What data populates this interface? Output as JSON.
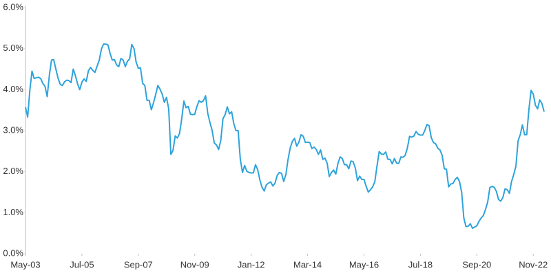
{
  "chart_data": {
    "type": "line",
    "x": [
      "2003-05",
      "2003-06",
      "2003-07",
      "2003-08",
      "2003-09",
      "2003-10",
      "2003-11",
      "2003-12",
      "2004-01",
      "2004-02",
      "2004-03",
      "2004-04",
      "2004-05",
      "2004-06",
      "2004-07",
      "2004-08",
      "2004-09",
      "2004-10",
      "2004-11",
      "2004-12",
      "2005-01",
      "2005-02",
      "2005-03",
      "2005-04",
      "2005-05",
      "2005-06",
      "2005-07",
      "2005-08",
      "2005-09",
      "2005-10",
      "2005-11",
      "2005-12",
      "2006-01",
      "2006-02",
      "2006-03",
      "2006-04",
      "2006-05",
      "2006-06",
      "2006-07",
      "2006-08",
      "2006-09",
      "2006-10",
      "2006-11",
      "2006-12",
      "2007-01",
      "2007-02",
      "2007-03",
      "2007-04",
      "2007-05",
      "2007-06",
      "2007-07",
      "2007-08",
      "2007-09",
      "2007-10",
      "2007-11",
      "2007-12",
      "2008-01",
      "2008-02",
      "2008-03",
      "2008-04",
      "2008-05",
      "2008-06",
      "2008-07",
      "2008-08",
      "2008-09",
      "2008-10",
      "2008-11",
      "2008-12",
      "2009-01",
      "2009-02",
      "2009-03",
      "2009-04",
      "2009-05",
      "2009-06",
      "2009-07",
      "2009-08",
      "2009-09",
      "2009-10",
      "2009-11",
      "2009-12",
      "2010-01",
      "2010-02",
      "2010-03",
      "2010-04",
      "2010-05",
      "2010-06",
      "2010-07",
      "2010-08",
      "2010-09",
      "2010-10",
      "2010-11",
      "2010-12",
      "2011-01",
      "2011-02",
      "2011-03",
      "2011-04",
      "2011-05",
      "2011-06",
      "2011-07",
      "2011-08",
      "2011-09",
      "2011-10",
      "2011-11",
      "2011-12",
      "2012-01",
      "2012-02",
      "2012-03",
      "2012-04",
      "2012-05",
      "2012-06",
      "2012-07",
      "2012-08",
      "2012-09",
      "2012-10",
      "2012-11",
      "2012-12",
      "2013-01",
      "2013-02",
      "2013-03",
      "2013-04",
      "2013-05",
      "2013-06",
      "2013-07",
      "2013-08",
      "2013-09",
      "2013-10",
      "2013-11",
      "2013-12",
      "2014-01",
      "2014-02",
      "2014-03",
      "2014-04",
      "2014-05",
      "2014-06",
      "2014-07",
      "2014-08",
      "2014-09",
      "2014-10",
      "2014-11",
      "2014-12",
      "2015-01",
      "2015-02",
      "2015-03",
      "2015-04",
      "2015-05",
      "2015-06",
      "2015-07",
      "2015-08",
      "2015-09",
      "2015-10",
      "2015-11",
      "2015-12",
      "2016-01",
      "2016-02",
      "2016-03",
      "2016-04",
      "2016-05",
      "2016-06",
      "2016-07",
      "2016-08",
      "2016-09",
      "2016-10",
      "2016-11",
      "2016-12",
      "2017-01",
      "2017-02",
      "2017-03",
      "2017-04",
      "2017-05",
      "2017-06",
      "2017-07",
      "2017-08",
      "2017-09",
      "2017-10",
      "2017-11",
      "2017-12",
      "2018-01",
      "2018-02",
      "2018-03",
      "2018-04",
      "2018-05",
      "2018-06",
      "2018-07",
      "2018-08",
      "2018-09",
      "2018-10",
      "2018-11",
      "2018-12",
      "2019-01",
      "2019-02",
      "2019-03",
      "2019-04",
      "2019-05",
      "2019-06",
      "2019-07",
      "2019-08",
      "2019-09",
      "2019-10",
      "2019-11",
      "2019-12",
      "2020-01",
      "2020-02",
      "2020-03",
      "2020-04",
      "2020-05",
      "2020-06",
      "2020-07",
      "2020-08",
      "2020-09",
      "2020-10",
      "2020-11",
      "2020-12",
      "2021-01",
      "2021-02",
      "2021-03",
      "2021-04",
      "2021-05",
      "2021-06",
      "2021-07",
      "2021-08",
      "2021-09",
      "2021-10",
      "2021-11",
      "2021-12",
      "2022-01",
      "2022-02",
      "2022-03",
      "2022-04",
      "2022-05",
      "2022-06",
      "2022-07",
      "2022-08",
      "2022-09",
      "2022-10",
      "2022-11",
      "2022-12",
      "2023-01",
      "2023-02",
      "2023-03",
      "2023-04"
    ],
    "series": [
      {
        "color": "#2ea3db",
        "values": [
          3.57,
          3.33,
          3.98,
          4.45,
          4.27,
          4.29,
          4.3,
          4.27,
          4.15,
          4.08,
          3.83,
          4.35,
          4.72,
          4.73,
          4.5,
          4.28,
          4.13,
          4.1,
          4.19,
          4.23,
          4.22,
          4.17,
          4.5,
          4.34,
          4.14,
          4.0,
          4.18,
          4.26,
          4.2,
          4.46,
          4.54,
          4.47,
          4.42,
          4.57,
          4.72,
          4.99,
          5.11,
          5.11,
          5.09,
          4.88,
          4.72,
          4.73,
          4.6,
          4.56,
          4.76,
          4.72,
          4.56,
          4.69,
          4.75,
          5.1,
          5.0,
          4.67,
          4.52,
          4.53,
          4.15,
          4.1,
          3.74,
          3.74,
          3.51,
          3.68,
          3.88,
          4.1,
          4.01,
          3.89,
          3.69,
          3.81,
          3.53,
          2.42,
          2.52,
          2.87,
          2.82,
          2.93,
          3.29,
          3.72,
          3.56,
          3.59,
          3.4,
          3.39,
          3.4,
          3.59,
          3.73,
          3.69,
          3.73,
          3.85,
          3.42,
          3.2,
          3.01,
          2.7,
          2.65,
          2.54,
          2.76,
          3.29,
          3.39,
          3.58,
          3.41,
          3.46,
          3.17,
          3.0,
          3.0,
          2.3,
          1.98,
          2.15,
          2.01,
          1.98,
          1.97,
          1.97,
          2.17,
          2.05,
          1.8,
          1.62,
          1.53,
          1.68,
          1.72,
          1.75,
          1.65,
          1.72,
          1.91,
          1.98,
          1.96,
          1.76,
          1.93,
          2.3,
          2.58,
          2.74,
          2.81,
          2.62,
          2.72,
          2.9,
          2.86,
          2.71,
          2.72,
          2.71,
          2.56,
          2.6,
          2.54,
          2.42,
          2.53,
          2.3,
          2.33,
          2.21,
          1.88,
          1.98,
          2.04,
          1.94,
          2.2,
          2.36,
          2.32,
          2.17,
          2.17,
          2.07,
          2.26,
          2.24,
          2.09,
          1.78,
          1.89,
          1.81,
          1.81,
          1.64,
          1.5,
          1.56,
          1.63,
          1.76,
          2.14,
          2.49,
          2.43,
          2.42,
          2.48,
          2.3,
          2.3,
          2.19,
          2.32,
          2.21,
          2.2,
          2.36,
          2.35,
          2.4,
          2.58,
          2.86,
          2.84,
          2.87,
          2.98,
          2.91,
          2.89,
          2.89,
          3.0,
          3.15,
          3.12,
          2.83,
          2.71,
          2.68,
          2.57,
          2.53,
          2.4,
          2.07,
          2.06,
          1.63,
          1.7,
          1.71,
          1.81,
          1.86,
          1.76,
          1.5,
          0.87,
          0.66,
          0.67,
          0.73,
          0.62,
          0.65,
          0.68,
          0.79,
          0.87,
          0.93,
          1.08,
          1.26,
          1.61,
          1.64,
          1.62,
          1.52,
          1.32,
          1.28,
          1.37,
          1.58,
          1.56,
          1.47,
          1.76,
          1.93,
          2.13,
          2.75,
          2.9,
          3.14,
          2.9,
          2.9,
          3.52,
          3.98,
          3.89,
          3.62,
          3.53,
          3.75,
          3.66,
          3.46
        ]
      }
    ],
    "xticks": [
      {
        "value": "2003-05",
        "label": "May-03"
      },
      {
        "value": "2005-07",
        "label": "Jul-05"
      },
      {
        "value": "2007-09",
        "label": "Sep-07"
      },
      {
        "value": "2009-11",
        "label": "Nov-09"
      },
      {
        "value": "2012-01",
        "label": "Jan-12"
      },
      {
        "value": "2014-03",
        "label": "Mar-14"
      },
      {
        "value": "2016-05",
        "label": "May-16"
      },
      {
        "value": "2018-07",
        "label": "Jul-18"
      },
      {
        "value": "2020-09",
        "label": "Sep-20"
      },
      {
        "value": "2022-11",
        "label": "Nov-22"
      }
    ],
    "ylim": [
      0,
      6
    ],
    "yticks": [
      {
        "value": 0,
        "label": "0.0%"
      },
      {
        "value": 1,
        "label": "1.0%"
      },
      {
        "value": 2,
        "label": "2.0%"
      },
      {
        "value": 3,
        "label": "3.0%"
      },
      {
        "value": 4,
        "label": "4.0%"
      },
      {
        "value": 5,
        "label": "5.0%"
      },
      {
        "value": 6,
        "label": "6.0%"
      }
    ],
    "grid": false
  }
}
